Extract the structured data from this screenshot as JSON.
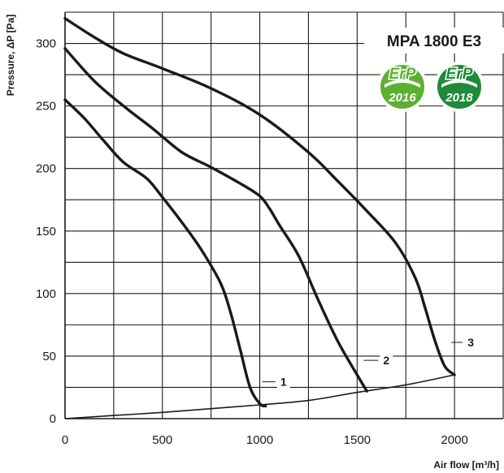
{
  "chart_data": {
    "type": "line",
    "title": "",
    "xlabel": "Air flow [m³/h]",
    "ylabel": "Pressure, ΔP [Pa]",
    "xlim": [
      0,
      2250
    ],
    "ylim": [
      0,
      325
    ],
    "x_ticks": [
      0,
      500,
      1000,
      1500,
      2000
    ],
    "y_ticks": [
      0,
      50,
      100,
      150,
      200,
      250,
      300
    ],
    "x_tick_labels": [
      "0",
      "500",
      "1000",
      "1500",
      "2000"
    ],
    "y_tick_labels": [
      "0",
      "50",
      "100",
      "150",
      "200",
      "250",
      "300"
    ],
    "grid": true,
    "series": [
      {
        "name": "1",
        "points": [
          [
            0,
            255
          ],
          [
            100,
            240
          ],
          [
            200,
            222
          ],
          [
            300,
            205
          ],
          [
            420,
            192
          ],
          [
            500,
            177
          ],
          [
            600,
            157
          ],
          [
            700,
            135
          ],
          [
            800,
            108
          ],
          [
            850,
            85
          ],
          [
            900,
            55
          ],
          [
            950,
            25
          ],
          [
            1000,
            12
          ],
          [
            1030,
            10
          ]
        ]
      },
      {
        "name": "2",
        "points": [
          [
            0,
            296
          ],
          [
            150,
            270
          ],
          [
            300,
            250
          ],
          [
            450,
            232
          ],
          [
            600,
            213
          ],
          [
            750,
            201
          ],
          [
            900,
            188
          ],
          [
            1000,
            178
          ],
          [
            1050,
            168
          ],
          [
            1100,
            155
          ],
          [
            1200,
            130
          ],
          [
            1300,
            95
          ],
          [
            1400,
            62
          ],
          [
            1500,
            35
          ],
          [
            1550,
            22
          ]
        ]
      },
      {
        "name": "3",
        "points": [
          [
            0,
            320
          ],
          [
            150,
            305
          ],
          [
            300,
            292
          ],
          [
            500,
            280
          ],
          [
            750,
            264
          ],
          [
            1000,
            243
          ],
          [
            1250,
            213
          ],
          [
            1400,
            190
          ],
          [
            1550,
            166
          ],
          [
            1700,
            140
          ],
          [
            1800,
            112
          ],
          [
            1850,
            88
          ],
          [
            1900,
            62
          ],
          [
            1950,
            42
          ],
          [
            2000,
            35
          ]
        ]
      }
    ],
    "system_curve": {
      "points": [
        [
          0,
          0
        ],
        [
          250,
          2.5
        ],
        [
          500,
          5
        ],
        [
          750,
          8
        ],
        [
          1000,
          11
        ],
        [
          1250,
          14.5
        ],
        [
          1500,
          21
        ],
        [
          1750,
          27
        ],
        [
          2000,
          35
        ]
      ]
    }
  },
  "labels": {
    "model": "MPA 1800 E3",
    "erp_2016_top": "ErP",
    "erp_2016_year": "2016",
    "erp_2018_top": "ErP",
    "erp_2018_year": "2018"
  },
  "colors": {
    "curve": "#1a1a1a",
    "grid": "#1a1a1a",
    "erp_2016_green": "#5cb031",
    "erp_2018_green": "#1f8a3a"
  }
}
